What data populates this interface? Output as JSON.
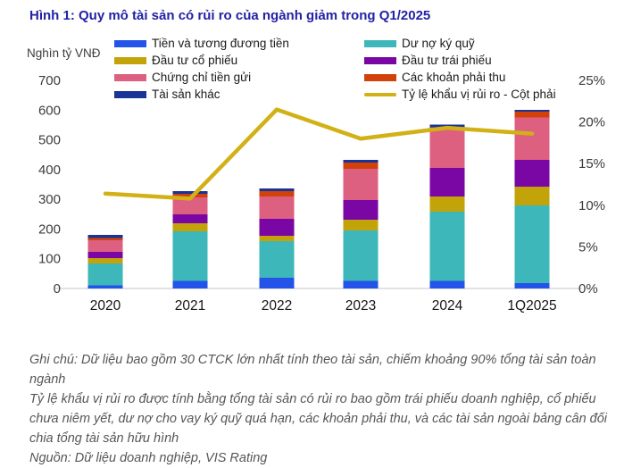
{
  "title": "Hình 1: Quy mô tài sản có rủi ro của ngành giảm trong Q1/2025",
  "notes": {
    "note1": "Ghi chú: Dữ liệu bao gồm 30 CTCK lớn nhất tính theo tài sản, chiếm khoảng 90% tổng tài sản toàn ngành",
    "note2": "Tỷ lệ khẩu vị rủi ro được tính bằng tổng tài sản có rủi ro bao gồm trái phiếu doanh nghiệp, cổ phiếu chưa niêm yết, dư nợ cho vay ký quỹ quá hạn, các khoản phải thu, và các tài sản ngoài bảng cân đối chia tổng tài sản hữu hình",
    "note3": "Nguồn: Dữ liệu doanh nghiệp, VIS Rating"
  },
  "chart_data": {
    "type": "stacked-bar-with-line",
    "title": "Hình 1: Quy mô tài sản có rủi ro của ngành giảm trong Q1/2025",
    "unit_label": "Nghìn tỷ VNĐ",
    "categories": [
      "2020",
      "2021",
      "2022",
      "2023",
      "2024",
      "1Q2025"
    ],
    "series": [
      {
        "name": "Tiền và tương đương tiền",
        "color": "#2353e8",
        "values": [
          10,
          25,
          36,
          25,
          25,
          18
        ]
      },
      {
        "name": "Dư nợ ký quỹ",
        "color": "#3db7ba",
        "values": [
          74,
          167,
          123,
          170,
          233,
          262
        ]
      },
      {
        "name": "Đầu tư cổ phiếu",
        "color": "#c3a30a",
        "values": [
          18,
          27,
          18,
          36,
          51,
          62
        ]
      },
      {
        "name": "Đầu tư trái phiếu",
        "color": "#7a06a4",
        "values": [
          21,
          30,
          57,
          66,
          96,
          90
        ]
      },
      {
        "name": "Chứng chỉ tiền gửi",
        "color": "#dd6080",
        "values": [
          39,
          57,
          75,
          105,
          129,
          143
        ]
      },
      {
        "name": "Các khoản phải thu",
        "color": "#d2410a",
        "values": [
          7,
          12,
          18,
          21,
          9,
          20
        ]
      },
      {
        "name": "Tài sản khác",
        "color": "#1a3396",
        "values": [
          11,
          9,
          9,
          9,
          9,
          6
        ]
      }
    ],
    "line_series": {
      "name": "Tỷ lệ khẩu vị rủi ro - Cột phải",
      "color": "#d1b116",
      "values_pct": [
        11.4,
        10.8,
        21.5,
        18.0,
        19.3,
        18.6
      ]
    },
    "totals": [
      180,
      327,
      336,
      432,
      552,
      601
    ],
    "left_axis": {
      "min": 0,
      "max": 700,
      "step": 100
    },
    "right_axis": {
      "min": 0,
      "max": 25,
      "step": 5,
      "suffix": "%"
    },
    "grid": "off",
    "legend_position": "top"
  }
}
